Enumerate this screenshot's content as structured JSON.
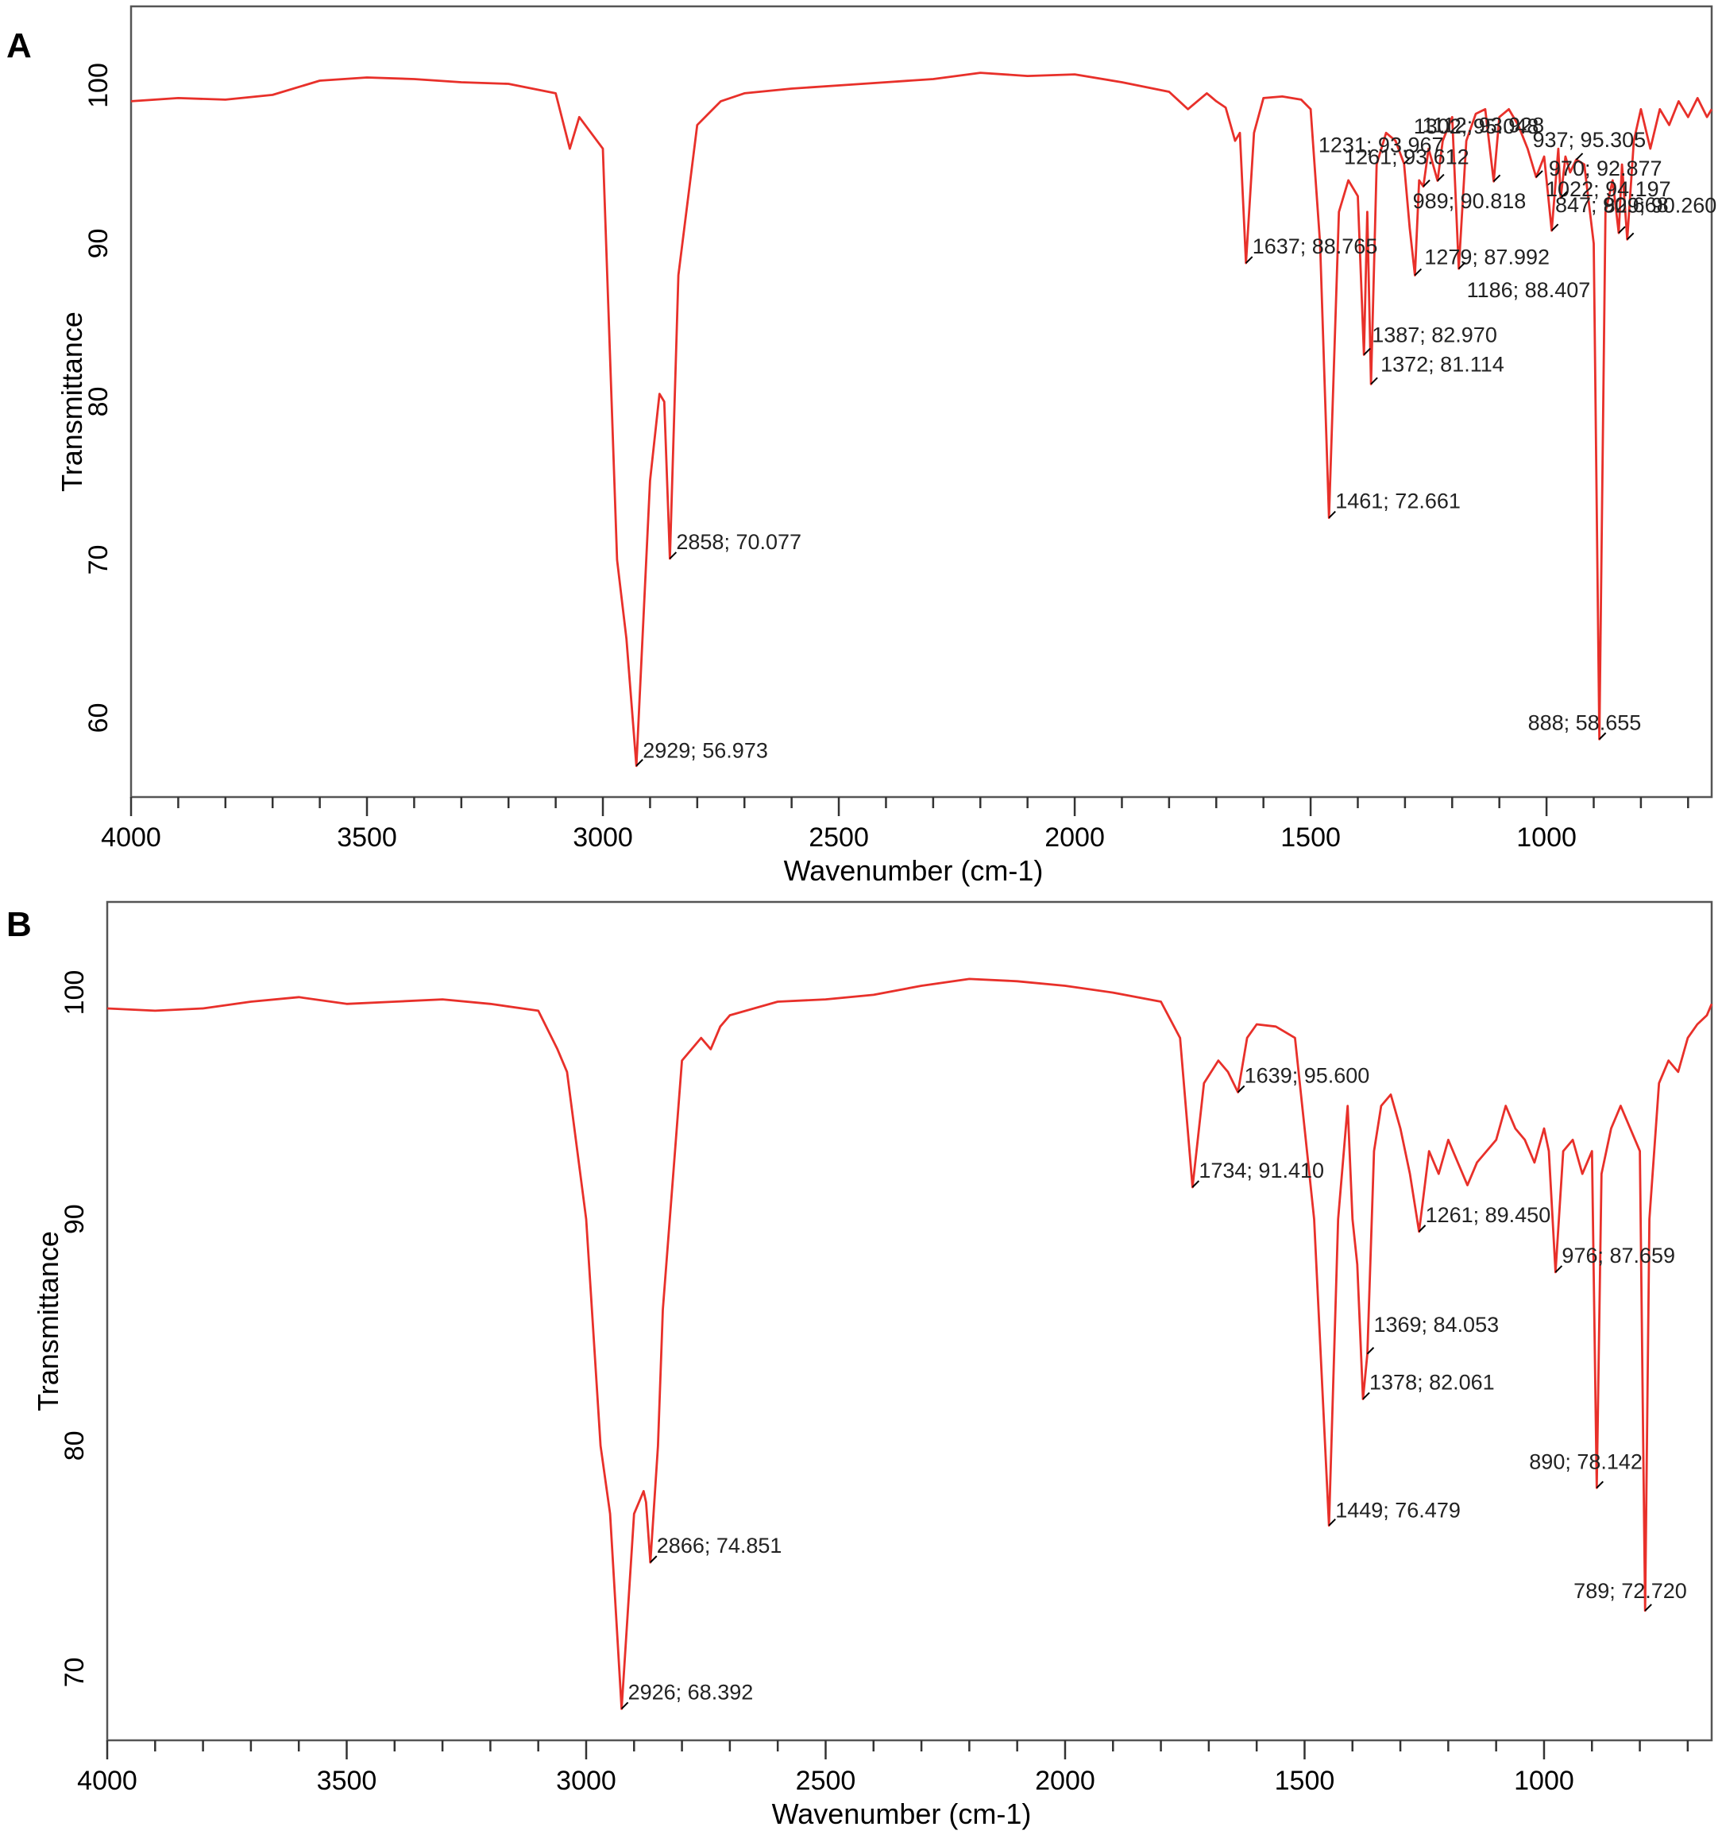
{
  "chart_data": [
    {
      "panel": "A",
      "type": "line",
      "xlabel": "Wavenumber (cm-1)",
      "ylabel": "Transmittance",
      "xlim": [
        4000,
        650
      ],
      "ylim": [
        55,
        105
      ],
      "xticks": [
        4000,
        3500,
        3000,
        2500,
        2000,
        1500,
        1000
      ],
      "xtick_labels": [
        "4000",
        "3500",
        "3000",
        "2500",
        "2000",
        "1500",
        "1000"
      ],
      "yticks": [
        60,
        70,
        80,
        90,
        100
      ],
      "ytick_labels": [
        "60",
        "70",
        "80",
        "90",
        "100"
      ],
      "grid": false,
      "color": "#e8302a",
      "x": [
        4000,
        3900,
        3800,
        3700,
        3600,
        3500,
        3400,
        3300,
        3200,
        3100,
        3070,
        3050,
        3000,
        2970,
        2950,
        2929,
        2900,
        2880,
        2870,
        2858,
        2840,
        2800,
        2750,
        2700,
        2600,
        2500,
        2400,
        2300,
        2200,
        2100,
        2000,
        1900,
        1800,
        1760,
        1720,
        1700,
        1680,
        1660,
        1650,
        1637,
        1620,
        1600,
        1560,
        1520,
        1500,
        1480,
        1461,
        1440,
        1420,
        1400,
        1387,
        1380,
        1372,
        1360,
        1340,
        1320,
        1302,
        1290,
        1279,
        1270,
        1261,
        1250,
        1231,
        1220,
        1200,
        1186,
        1170,
        1150,
        1130,
        1112,
        1100,
        1080,
        1060,
        1040,
        1022,
        1005,
        989,
        975,
        970,
        960,
        950,
        937,
        920,
        900,
        888,
        875,
        860,
        847,
        840,
        829,
        815,
        800,
        780,
        760,
        740,
        720,
        700,
        680,
        660,
        650
      ],
      "y": [
        99,
        99.2,
        99.1,
        99.4,
        100.3,
        100.5,
        100.4,
        100.2,
        100.1,
        99.5,
        96,
        98,
        96,
        70,
        65,
        56.97,
        75,
        80.5,
        80,
        70.08,
        88,
        97.5,
        99,
        99.5,
        99.8,
        100,
        100.2,
        100.4,
        100.8,
        100.6,
        100.7,
        100.2,
        99.6,
        98.5,
        99.5,
        99,
        98.6,
        96.5,
        97,
        88.77,
        97,
        99.2,
        99.3,
        99.1,
        98.5,
        90,
        72.66,
        92,
        94,
        93,
        82.97,
        92,
        81.11,
        95,
        97,
        96.5,
        95.05,
        91,
        87.99,
        94,
        93.61,
        96,
        93.97,
        96.5,
        98,
        88.41,
        96.5,
        98.2,
        98.5,
        93.93,
        98,
        98.5,
        97.5,
        96,
        94.2,
        95.5,
        90.82,
        96,
        92.88,
        95.5,
        94.5,
        95.31,
        95,
        90,
        58.66,
        92,
        94,
        90.67,
        95,
        90.26,
        96.5,
        98.5,
        96,
        98.5,
        97.5,
        99,
        98,
        99.2,
        98,
        98.5
      ],
      "annotations": [
        {
          "x": 2929,
          "y": 56.973,
          "text": "2929; 56.973"
        },
        {
          "x": 2858,
          "y": 70.077,
          "text": "2858; 70.077"
        },
        {
          "x": 1637,
          "y": 88.765,
          "text": "1637; 88.765"
        },
        {
          "x": 1461,
          "y": 72.661,
          "text": "1461; 72.661"
        },
        {
          "x": 1387,
          "y": 82.97,
          "text": "1387; 82.970"
        },
        {
          "x": 1372,
          "y": 81.114,
          "text": "1372; 81.114"
        },
        {
          "x": 1302,
          "y": 95.048,
          "text": "1302; 95.048"
        },
        {
          "x": 1279,
          "y": 87.992,
          "text": "1279; 87.992"
        },
        {
          "x": 1261,
          "y": 93.612,
          "text": "1261; 93.612"
        },
        {
          "x": 1231,
          "y": 93.967,
          "text": "1231; 93.967"
        },
        {
          "x": 1186,
          "y": 88.407,
          "text": "1186; 88.407"
        },
        {
          "x": 1112,
          "y": 93.928,
          "text": "1112; 93.928"
        },
        {
          "x": 1022,
          "y": 94.197,
          "text": "1022; 94.197"
        },
        {
          "x": 989,
          "y": 90.818,
          "text": "989; 90.818"
        },
        {
          "x": 970,
          "y": 92.877,
          "text": "970; 92.877"
        },
        {
          "x": 937,
          "y": 95.305,
          "text": "937; 95.305"
        },
        {
          "x": 888,
          "y": 58.655,
          "text": "888; 58.655"
        },
        {
          "x": 847,
          "y": 90.668,
          "text": "847; 90.668"
        },
        {
          "x": 829,
          "y": 90.26,
          "text": "829; 90.260"
        }
      ]
    },
    {
      "panel": "B",
      "type": "line",
      "xlabel": "Wavenumber (cm-1)",
      "ylabel": "Transmittance",
      "xlim": [
        4000,
        650
      ],
      "ylim": [
        67,
        104
      ],
      "xticks": [
        4000,
        3500,
        3000,
        2500,
        2000,
        1500,
        1000
      ],
      "xtick_labels": [
        "4000",
        "3500",
        "3000",
        "2500",
        "2000",
        "1500",
        "1000"
      ],
      "yticks": [
        70,
        80,
        90,
        100
      ],
      "ytick_labels": [
        "70",
        "80",
        "90",
        "100"
      ],
      "grid": false,
      "color": "#e8302a",
      "x": [
        4000,
        3900,
        3800,
        3700,
        3600,
        3500,
        3400,
        3300,
        3200,
        3100,
        3060,
        3040,
        3000,
        2970,
        2950,
        2926,
        2900,
        2880,
        2875,
        2866,
        2850,
        2840,
        2800,
        2760,
        2740,
        2720,
        2700,
        2600,
        2500,
        2400,
        2300,
        2200,
        2100,
        2000,
        1900,
        1800,
        1760,
        1734,
        1710,
        1680,
        1660,
        1639,
        1620,
        1600,
        1560,
        1520,
        1500,
        1480,
        1449,
        1430,
        1410,
        1400,
        1390,
        1378,
        1369,
        1355,
        1340,
        1320,
        1300,
        1280,
        1261,
        1240,
        1220,
        1200,
        1180,
        1160,
        1140,
        1120,
        1100,
        1080,
        1060,
        1040,
        1020,
        1000,
        990,
        976,
        960,
        940,
        920,
        900,
        890,
        880,
        860,
        840,
        820,
        800,
        789,
        780,
        760,
        740,
        720,
        700,
        680,
        660,
        650
      ],
      "y": [
        99.3,
        99.2,
        99.3,
        99.6,
        99.8,
        99.5,
        99.6,
        99.7,
        99.5,
        99.2,
        97.5,
        96.5,
        90,
        80,
        77,
        68.39,
        77,
        78,
        77.5,
        74.85,
        80,
        86,
        97,
        98,
        97.5,
        98.5,
        99,
        99.6,
        99.7,
        99.9,
        100.3,
        100.6,
        100.5,
        100.3,
        100,
        99.6,
        98,
        91.41,
        96,
        97,
        96.5,
        95.6,
        98,
        98.6,
        98.5,
        98,
        94,
        90,
        76.48,
        90,
        95,
        90,
        88,
        82.06,
        84.05,
        93,
        95,
        95.5,
        94,
        92,
        89.45,
        93,
        92,
        93.5,
        92.5,
        91.5,
        92.5,
        93,
        93.5,
        95,
        94,
        93.5,
        92.5,
        94,
        93,
        87.66,
        93,
        93.5,
        92,
        93,
        78.14,
        92,
        94,
        95,
        94,
        93,
        72.72,
        90,
        96,
        97,
        96.5,
        98,
        98.6,
        99,
        99.5
      ],
      "annotations": [
        {
          "x": 2926,
          "y": 68.392,
          "text": "2926; 68.392"
        },
        {
          "x": 2866,
          "y": 74.851,
          "text": "2866; 74.851"
        },
        {
          "x": 1734,
          "y": 91.41,
          "text": "1734; 91.410"
        },
        {
          "x": 1639,
          "y": 95.6,
          "text": "1639; 95.600"
        },
        {
          "x": 1449,
          "y": 76.479,
          "text": "1449; 76.479"
        },
        {
          "x": 1378,
          "y": 82.061,
          "text": "1378; 82.061"
        },
        {
          "x": 1369,
          "y": 84.053,
          "text": "1369; 84.053"
        },
        {
          "x": 1261,
          "y": 89.45,
          "text": "1261; 89.450"
        },
        {
          "x": 976,
          "y": 87.659,
          "text": "976; 87.659"
        },
        {
          "x": 890,
          "y": 78.142,
          "text": "890; 78.142"
        },
        {
          "x": 789,
          "y": 72.72,
          "text": "789; 72.720"
        }
      ]
    }
  ]
}
